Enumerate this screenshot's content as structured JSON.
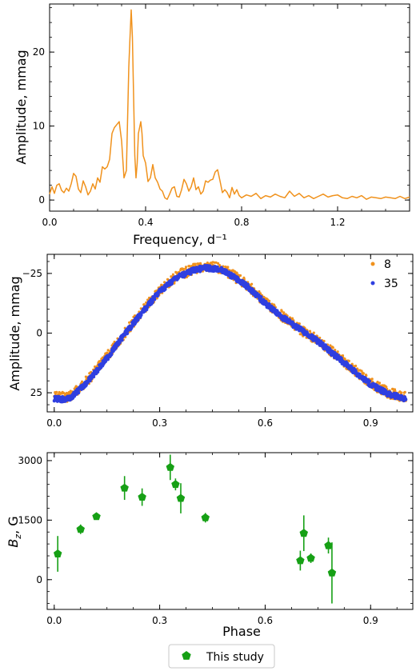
{
  "colors": {
    "orange": "#f0921d",
    "blue": "#2f3fe0",
    "green": "#16a015",
    "frame": "#000000"
  },
  "chart_data": [
    {
      "type": "line",
      "xlabel": "Frequency, d⁻¹",
      "ylabel": "Amplitude, mmag",
      "xlim": [
        0,
        1.5
      ],
      "ylim": [
        -1.5,
        26.5
      ],
      "xticks": [
        0,
        0.4,
        0.8,
        1.2
      ],
      "xtick_labels": [
        "0.0",
        "0.4",
        "0.8",
        "1.2"
      ],
      "yticks": [
        0,
        10,
        20
      ],
      "ytick_labels": [
        "0",
        "10",
        "20"
      ],
      "series": [
        {
          "color": "#f0921d",
          "x": [
            0,
            0.01,
            0.02,
            0.03,
            0.04,
            0.05,
            0.06,
            0.07,
            0.08,
            0.09,
            0.1,
            0.11,
            0.12,
            0.13,
            0.14,
            0.15,
            0.16,
            0.17,
            0.18,
            0.19,
            0.2,
            0.21,
            0.22,
            0.23,
            0.24,
            0.25,
            0.26,
            0.27,
            0.28,
            0.29,
            0.3,
            0.31,
            0.32,
            0.33,
            0.335,
            0.34,
            0.345,
            0.35,
            0.355,
            0.36,
            0.365,
            0.37,
            0.38,
            0.385,
            0.39,
            0.4,
            0.41,
            0.42,
            0.43,
            0.44,
            0.45,
            0.46,
            0.47,
            0.48,
            0.49,
            0.5,
            0.51,
            0.52,
            0.53,
            0.54,
            0.55,
            0.56,
            0.57,
            0.58,
            0.59,
            0.6,
            0.61,
            0.62,
            0.63,
            0.64,
            0.65,
            0.66,
            0.67,
            0.68,
            0.69,
            0.7,
            0.71,
            0.72,
            0.73,
            0.74,
            0.75,
            0.76,
            0.77,
            0.78,
            0.79,
            0.8,
            0.82,
            0.84,
            0.86,
            0.88,
            0.9,
            0.92,
            0.94,
            0.96,
            0.98,
            1.0,
            1.02,
            1.04,
            1.06,
            1.08,
            1.1,
            1.12,
            1.14,
            1.16,
            1.18,
            1.2,
            1.22,
            1.24,
            1.26,
            1.28,
            1.3,
            1.32,
            1.34,
            1.36,
            1.38,
            1.4,
            1.42,
            1.44,
            1.46,
            1.48,
            1.5
          ],
          "y": [
            0.8,
            1.8,
            0.9,
            2.0,
            2.2,
            1.3,
            1.0,
            1.6,
            1.2,
            2.2,
            3.6,
            3.2,
            1.5,
            1.0,
            2.6,
            1.8,
            0.7,
            1.2,
            2.2,
            1.5,
            3.0,
            2.4,
            4.5,
            4.2,
            4.5,
            5.5,
            9.0,
            9.8,
            10.2,
            10.6,
            8.0,
            3.0,
            4.0,
            18.0,
            22.0,
            25.7,
            22.0,
            14.0,
            6.0,
            3.0,
            5.0,
            9.0,
            10.6,
            9.0,
            6.0,
            5.0,
            2.5,
            3.0,
            4.8,
            3.0,
            2.4,
            1.5,
            1.2,
            0.3,
            0.1,
            0.8,
            1.6,
            1.8,
            0.5,
            0.4,
            1.4,
            2.8,
            2.2,
            1.2,
            1.8,
            3.0,
            1.4,
            1.8,
            0.8,
            1.2,
            2.6,
            2.4,
            2.7,
            2.8,
            3.8,
            4.1,
            2.6,
            1.0,
            1.4,
            1.0,
            0.3,
            1.7,
            0.8,
            1.4,
            0.6,
            0.3,
            0.7,
            0.5,
            0.9,
            0.2,
            0.6,
            0.4,
            0.8,
            0.5,
            0.3,
            1.2,
            0.5,
            0.9,
            0.3,
            0.6,
            0.2,
            0.5,
            0.8,
            0.4,
            0.6,
            0.7,
            0.3,
            0.2,
            0.5,
            0.3,
            0.6,
            0.1,
            0.4,
            0.3,
            0.2,
            0.4,
            0.3,
            0.2,
            0.5,
            0.2,
            0.4
          ]
        }
      ]
    },
    {
      "type": "scatter",
      "xlabel": "",
      "ylabel": "Amplitude, mmag",
      "xlim": [
        -0.02,
        1.02
      ],
      "ylim": [
        33,
        -33
      ],
      "y_inverted": true,
      "xticks": [
        0,
        0.3,
        0.6,
        0.9
      ],
      "xtick_labels": [
        "0.0",
        "0.3",
        "0.6",
        "0.9"
      ],
      "yticks": [
        -25,
        0,
        25
      ],
      "ytick_labels": [
        "−25",
        "0",
        "25"
      ],
      "legend_position": "top-right",
      "series": [
        {
          "name": "8",
          "color": "#f0921d",
          "x": [
            0.0,
            0.03,
            0.05,
            0.1,
            0.15,
            0.2,
            0.25,
            0.3,
            0.35,
            0.4,
            0.43,
            0.47,
            0.5,
            0.55,
            0.6,
            0.65,
            0.7,
            0.75,
            0.8,
            0.85,
            0.9,
            0.95,
            1.0
          ],
          "y": [
            26.5,
            26.8,
            26,
            19,
            10,
            0,
            -9,
            -18,
            -24,
            -27,
            -27.8,
            -27.3,
            -25,
            -20,
            -13,
            -7,
            -1.5,
            3,
            9,
            15,
            21,
            25,
            27
          ]
        },
        {
          "name": "35",
          "color": "#2f3fe0",
          "x": [
            0.0,
            0.03,
            0.05,
            0.1,
            0.15,
            0.2,
            0.25,
            0.3,
            0.35,
            0.4,
            0.43,
            0.47,
            0.5,
            0.55,
            0.6,
            0.65,
            0.7,
            0.75,
            0.8,
            0.85,
            0.9,
            0.95,
            1.0
          ],
          "y": [
            27.5,
            27.8,
            26.8,
            19.5,
            10.5,
            0.5,
            -8.5,
            -17.5,
            -23.5,
            -26.5,
            -27.3,
            -26.8,
            -24.5,
            -19.5,
            -12.5,
            -6.5,
            -1.5,
            3.5,
            9.5,
            15.5,
            21.5,
            25.5,
            27.5
          ]
        }
      ]
    },
    {
      "type": "scatter",
      "xlabel": "Phase",
      "ylabel": "Bᵤ, G",
      "ylabel_main": "B",
      "ylabel_sub": "z",
      "ylabel_tail": ", G",
      "xlim": [
        -0.02,
        1.02
      ],
      "ylim": [
        -750,
        3200
      ],
      "xticks": [
        0,
        0.3,
        0.6,
        0.9
      ],
      "xtick_labels": [
        "0.0",
        "0.3",
        "0.6",
        "0.9"
      ],
      "yticks": [
        0,
        1500,
        3000
      ],
      "ytick_labels": [
        "0",
        "1500",
        "3000"
      ],
      "legend_position": "bottom-center",
      "series": [
        {
          "name": "This study",
          "color": "#16a015",
          "x": [
            0.01,
            0.075,
            0.12,
            0.2,
            0.25,
            0.33,
            0.345,
            0.36,
            0.43,
            0.7,
            0.71,
            0.73,
            0.78,
            0.79
          ],
          "y": [
            650,
            1270,
            1590,
            2310,
            2080,
            2830,
            2400,
            2050,
            1560,
            480,
            1170,
            540,
            860,
            170
          ],
          "yerr": [
            450,
            120,
            80,
            300,
            220,
            320,
            150,
            380,
            120,
            250,
            450,
            120,
            200,
            770
          ]
        }
      ]
    }
  ]
}
